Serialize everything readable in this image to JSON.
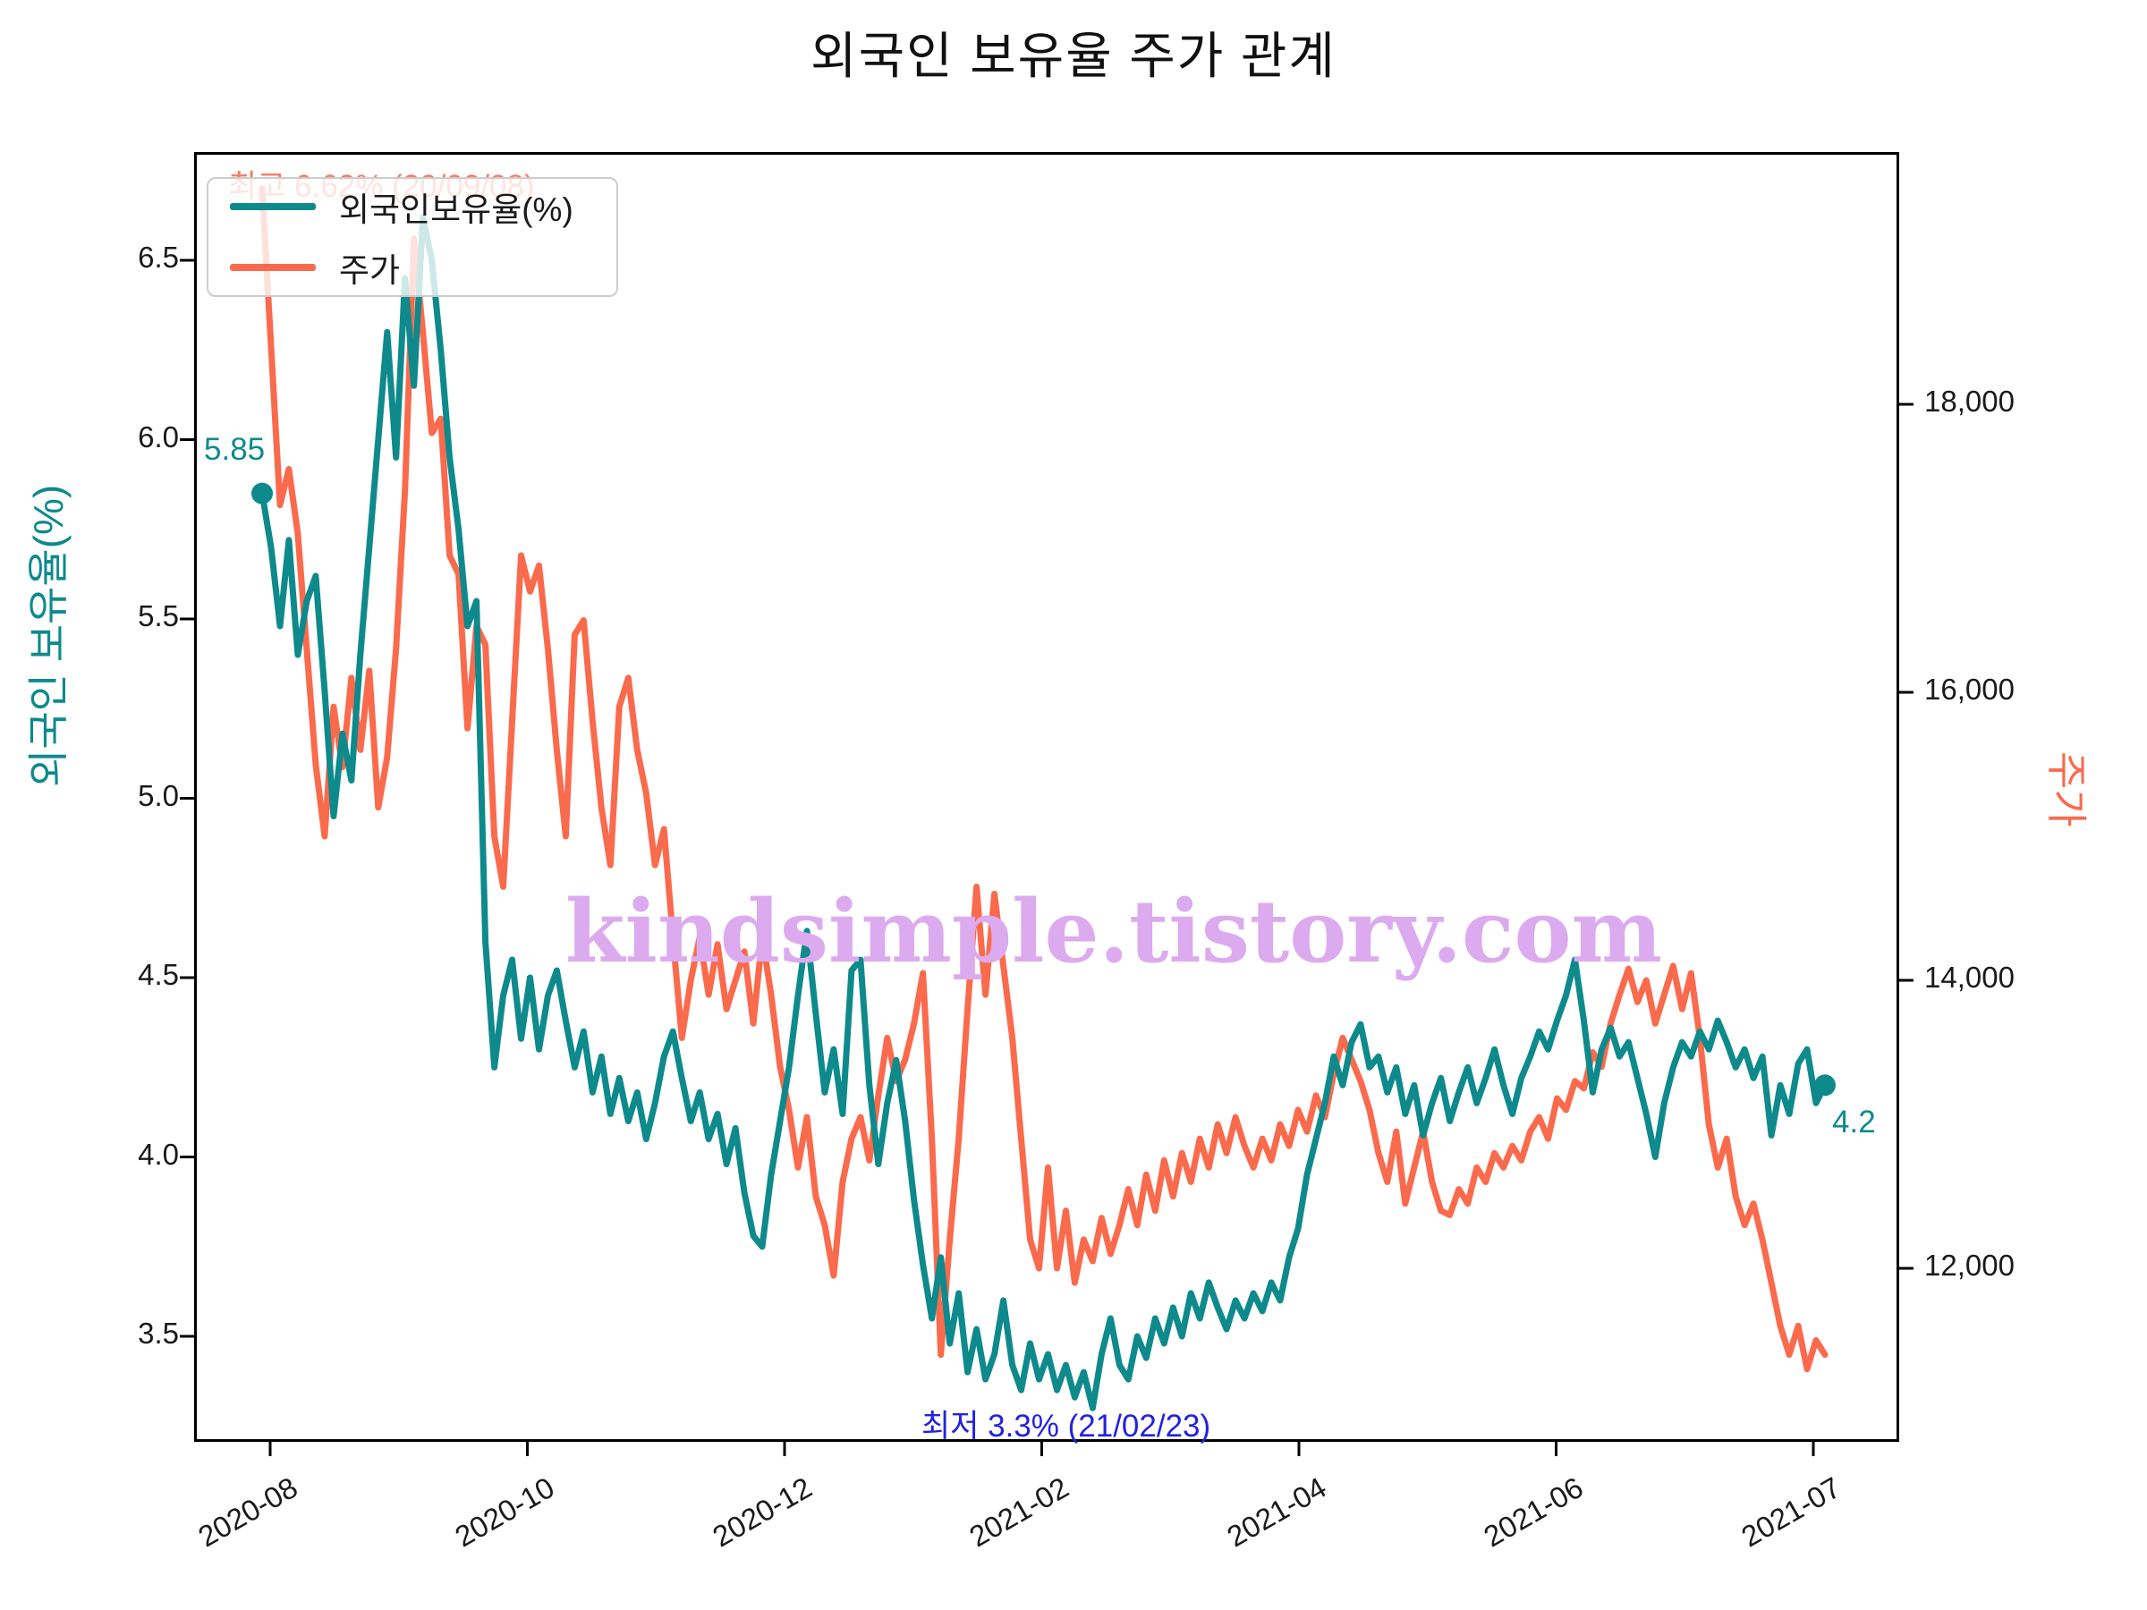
{
  "title": "외국인 보유율 주가 관계",
  "watermark": "kindsimple.tistory.com",
  "colors": {
    "ratio_line": "#0e8a8c",
    "price_line": "#fa6a4c",
    "max_annotation": "#f87a62",
    "min_annotation": "#2222e0",
    "watermark": "#dcaaee"
  },
  "legend": {
    "items": [
      {
        "label": "외국인보유율(%)",
        "series": "ratio"
      },
      {
        "label": "주가",
        "series": "price"
      }
    ]
  },
  "annotations": {
    "max_label": "최고 6.62% (20/09/08)",
    "min_label": "최저 3.3% (21/02/23)",
    "start_value_label": "5.85",
    "end_value_label": "4.2"
  },
  "chart_data": {
    "type": "line",
    "title": "외국인 보유율 주가 관계",
    "ylabel_left": "외국인 보유율(%)",
    "ylabel_right": "주가",
    "y_left_ticks": [
      6.5,
      6.0,
      5.5,
      5.0,
      4.5,
      4.0,
      3.5
    ],
    "y_right_ticks": [
      {
        "value": 18000,
        "label": "18,000"
      },
      {
        "value": 16000,
        "label": "16,000"
      },
      {
        "value": 14000,
        "label": "14,000"
      },
      {
        "value": 12000,
        "label": "12,000"
      }
    ],
    "x_ticks": [
      "2020-08",
      "2020-10",
      "2020-12",
      "2021-02",
      "2021-04",
      "2021-06",
      "2021-07"
    ],
    "y_left_range": [
      3.2,
      6.78
    ],
    "y_right_range": [
      10800,
      19700
    ],
    "grid": false,
    "legend_position": "upper left",
    "series": [
      {
        "name": "외국인보유율(%)",
        "axis": "left",
        "max": {
          "value": 6.62,
          "date": "20/09/08"
        },
        "min": {
          "value": 3.3,
          "date": "21/02/23"
        },
        "first": 5.85,
        "last": 4.2,
        "values": [
          5.85,
          5.7,
          5.48,
          5.72,
          5.4,
          5.55,
          5.62,
          5.3,
          4.95,
          5.18,
          5.05,
          5.4,
          5.7,
          6.0,
          6.3,
          5.95,
          6.45,
          6.15,
          6.62,
          6.5,
          6.25,
          5.95,
          5.75,
          5.48,
          5.55,
          4.6,
          4.25,
          4.45,
          4.55,
          4.33,
          4.5,
          4.3,
          4.45,
          4.52,
          4.38,
          4.25,
          4.35,
          4.18,
          4.28,
          4.12,
          4.22,
          4.1,
          4.18,
          4.05,
          4.15,
          4.28,
          4.35,
          4.22,
          4.1,
          4.18,
          4.05,
          4.12,
          3.98,
          4.08,
          3.9,
          3.78,
          3.75,
          3.95,
          4.1,
          4.25,
          4.45,
          4.63,
          4.4,
          4.18,
          4.3,
          4.12,
          4.52,
          4.55,
          4.2,
          3.98,
          4.15,
          4.27,
          4.1,
          3.88,
          3.7,
          3.55,
          3.72,
          3.48,
          3.62,
          3.4,
          3.52,
          3.38,
          3.45,
          3.6,
          3.42,
          3.35,
          3.48,
          3.38,
          3.45,
          3.35,
          3.42,
          3.33,
          3.4,
          3.3,
          3.45,
          3.55,
          3.42,
          3.38,
          3.5,
          3.44,
          3.55,
          3.48,
          3.58,
          3.5,
          3.62,
          3.55,
          3.65,
          3.58,
          3.52,
          3.6,
          3.55,
          3.62,
          3.57,
          3.65,
          3.6,
          3.72,
          3.8,
          3.95,
          4.05,
          4.15,
          4.28,
          4.2,
          4.32,
          4.37,
          4.25,
          4.28,
          4.18,
          4.25,
          4.12,
          4.2,
          4.06,
          4.15,
          4.22,
          4.1,
          4.18,
          4.25,
          4.15,
          4.22,
          4.3,
          4.2,
          4.12,
          4.22,
          4.28,
          4.35,
          4.3,
          4.38,
          4.45,
          4.55,
          4.38,
          4.18,
          4.3,
          4.36,
          4.28,
          4.32,
          4.22,
          4.12,
          4.0,
          4.15,
          4.25,
          4.32,
          4.28,
          4.35,
          4.3,
          4.38,
          4.32,
          4.25,
          4.3,
          4.22,
          4.28,
          4.06,
          4.2,
          4.12,
          4.26,
          4.3,
          4.15,
          4.2
        ]
      },
      {
        "name": "주가",
        "axis": "right",
        "values": [
          19500,
          18400,
          17300,
          17550,
          17100,
          16300,
          15500,
          15000,
          15900,
          15480,
          16100,
          15600,
          16150,
          15200,
          15550,
          16300,
          17400,
          19150,
          18500,
          17800,
          17900,
          16950,
          16820,
          15750,
          16460,
          16330,
          15000,
          14650,
          15800,
          16950,
          16700,
          16880,
          16300,
          15600,
          15000,
          16400,
          16500,
          15800,
          15200,
          14800,
          15900,
          16100,
          15600,
          15300,
          14800,
          15050,
          14300,
          13600,
          14000,
          14300,
          13900,
          14250,
          13800,
          14000,
          14200,
          13700,
          14300,
          13900,
          13400,
          13100,
          12700,
          13050,
          12500,
          12300,
          11950,
          12600,
          12900,
          13050,
          12750,
          13200,
          13600,
          13300,
          13450,
          13700,
          14050,
          12900,
          11400,
          12200,
          12900,
          13800,
          14650,
          13900,
          14600,
          14100,
          13600,
          12900,
          12200,
          12000,
          12700,
          12000,
          12400,
          11900,
          12200,
          12050,
          12350,
          12100,
          12300,
          12550,
          12300,
          12650,
          12400,
          12750,
          12500,
          12800,
          12600,
          12900,
          12700,
          13000,
          12800,
          13050,
          12850,
          12700,
          12900,
          12750,
          13000,
          12850,
          13100,
          12950,
          13200,
          13050,
          13350,
          13600,
          13450,
          13300,
          13100,
          12800,
          12600,
          12950,
          12450,
          12700,
          12950,
          12600,
          12400,
          12370,
          12550,
          12450,
          12700,
          12600,
          12800,
          12700,
          12850,
          12750,
          12950,
          13050,
          12900,
          13180,
          13100,
          13300,
          13250,
          13500,
          13400,
          13700,
          13900,
          14080,
          13850,
          14000,
          13700,
          13900,
          14100,
          13800,
          14050,
          13600,
          13000,
          12700,
          12900,
          12500,
          12300,
          12450,
          12200,
          11900,
          11600,
          11400,
          11600,
          11300,
          11500,
          11400
        ]
      }
    ]
  }
}
